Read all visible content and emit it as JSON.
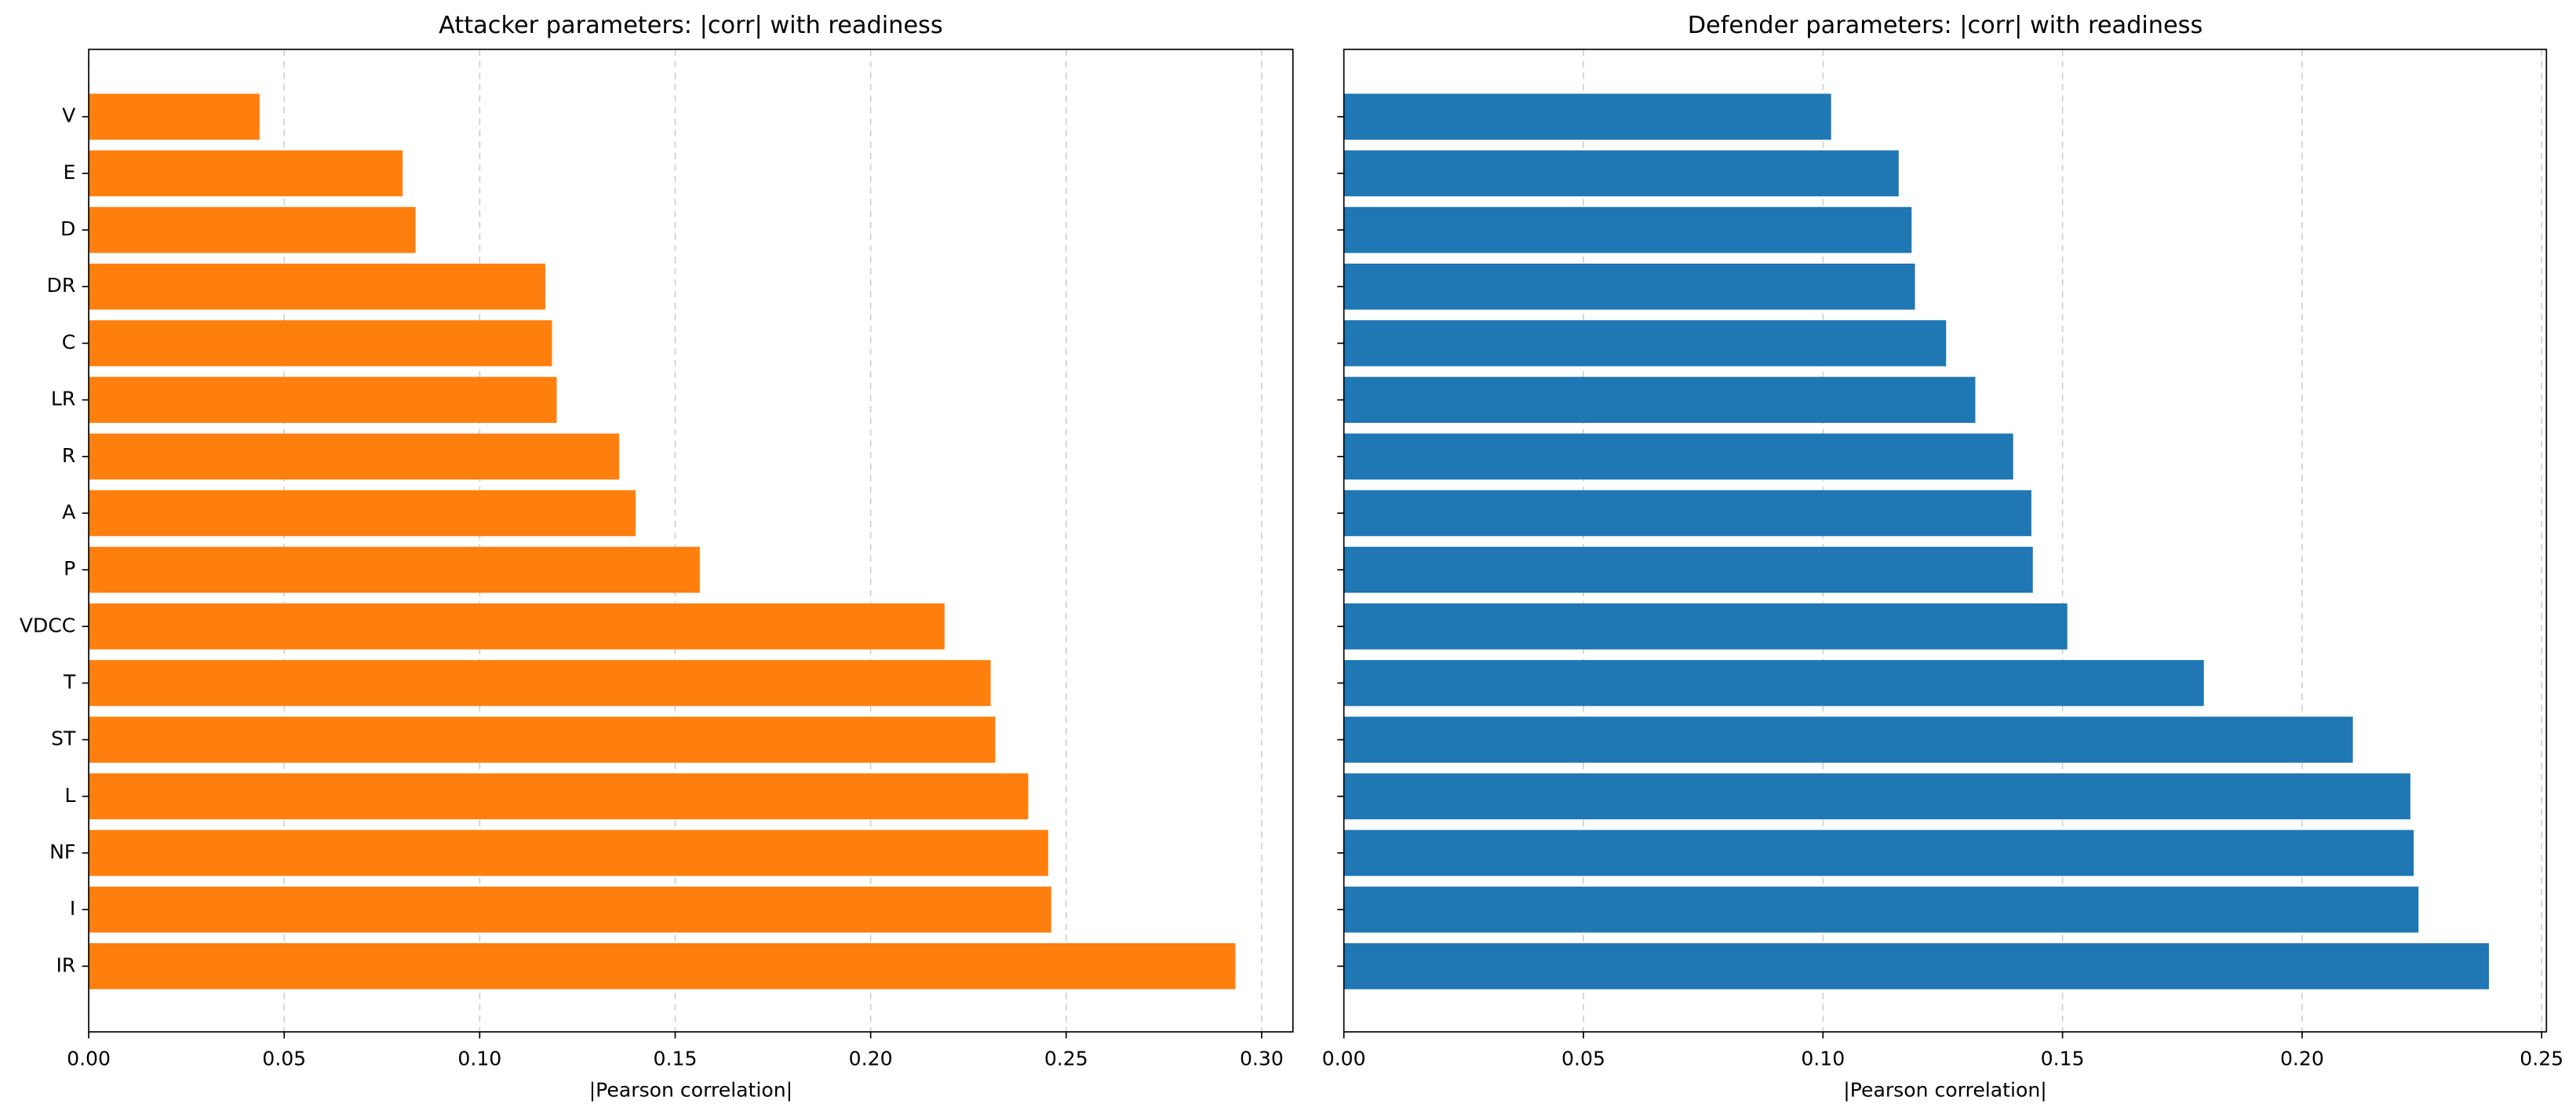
{
  "chart_data": [
    {
      "type": "bar",
      "orientation": "horizontal",
      "title": "Attacker parameters: |corr| with readiness",
      "xlabel": "|Pearson correlation|",
      "categories": [
        "V",
        "E",
        "D",
        "DR",
        "C",
        "LR",
        "R",
        "A",
        "P",
        "VDCC",
        "T",
        "ST",
        "L",
        "NF",
        "I",
        "IR"
      ],
      "values": [
        0.0437,
        0.0803,
        0.0836,
        0.1168,
        0.1185,
        0.1197,
        0.1357,
        0.1399,
        0.1563,
        0.2189,
        0.2307,
        0.2319,
        0.2403,
        0.2454,
        0.2462,
        0.2933
      ],
      "color": "#ff7f0e",
      "xlim": [
        0,
        0.308
      ],
      "xticks": [
        {
          "value": 0,
          "label": "0.00"
        },
        {
          "value": 0.05,
          "label": "0.05"
        },
        {
          "value": 0.1,
          "label": "0.10"
        },
        {
          "value": 0.15,
          "label": "0.15"
        },
        {
          "value": 0.2,
          "label": "0.20"
        },
        {
          "value": 0.25,
          "label": "0.25"
        },
        {
          "value": 0.3,
          "label": "0.30"
        }
      ],
      "grid": true
    },
    {
      "type": "bar",
      "orientation": "horizontal",
      "title": "Defender parameters: |corr| with readiness",
      "xlabel": "|Pearson correlation|",
      "categories": [
        null,
        null,
        null,
        null,
        null,
        null,
        null,
        null,
        null,
        null,
        null,
        null,
        null,
        null,
        null,
        null
      ],
      "values": [
        0.1017,
        0.1158,
        0.1185,
        0.1192,
        0.1257,
        0.1318,
        0.1397,
        0.1435,
        0.1438,
        0.151,
        0.1795,
        0.2106,
        0.2226,
        0.2233,
        0.2243,
        0.239
      ],
      "color": "#1f77b4",
      "xlim": [
        0,
        0.251
      ],
      "xticks": [
        {
          "value": 0,
          "label": "0.00"
        },
        {
          "value": 0.05,
          "label": "0.05"
        },
        {
          "value": 0.1,
          "label": "0.10"
        },
        {
          "value": 0.15,
          "label": "0.15"
        },
        {
          "value": 0.2,
          "label": "0.20"
        },
        {
          "value": 0.25,
          "label": "0.25"
        }
      ],
      "grid": true
    }
  ]
}
